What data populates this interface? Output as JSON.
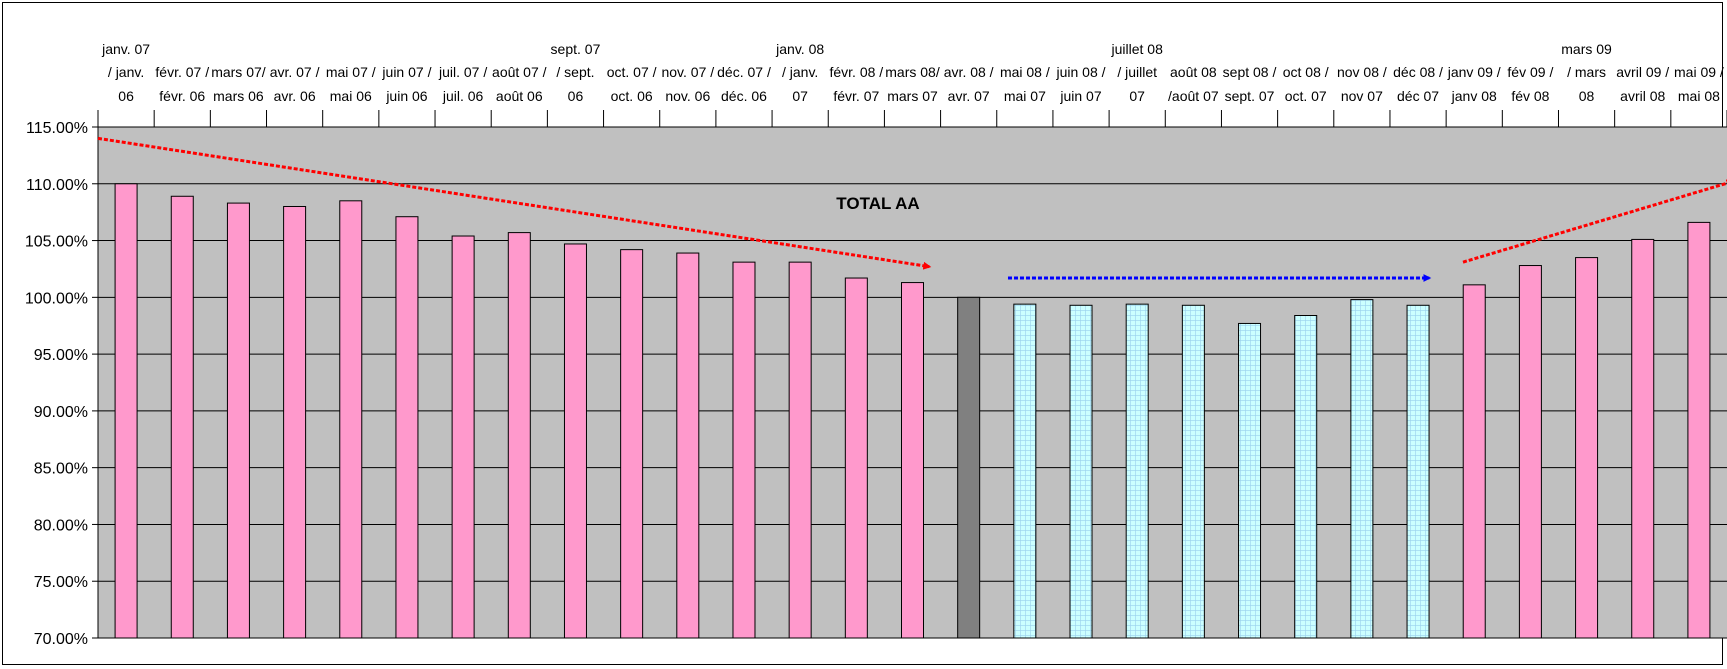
{
  "chart_data": {
    "type": "bar",
    "title": "TOTAL AA",
    "xlabel": "",
    "ylabel": "",
    "ylim": [
      70,
      115
    ],
    "y_tick_labels": [
      "115.00%",
      "110.00%",
      "105.00%",
      "100.00%",
      "95.00%",
      "90.00%",
      "85.00%",
      "80.00%",
      "75.00%",
      "70.00%"
    ],
    "grid": true,
    "legend": "none",
    "categories": [
      [
        "janv. 07",
        "/ janv.",
        "06"
      ],
      [
        "",
        "févr. 07 /",
        "févr. 06"
      ],
      [
        "",
        "mars 07/",
        "mars 06"
      ],
      [
        "",
        "avr. 07 /",
        "avr. 06"
      ],
      [
        "",
        "mai 07 /",
        "mai 06"
      ],
      [
        "",
        "juin 07 /",
        "juin 06"
      ],
      [
        "",
        "juil. 07 /",
        "juil. 06"
      ],
      [
        "",
        "août 07 /",
        "août 06"
      ],
      [
        "sept. 07",
        "/ sept.",
        "06"
      ],
      [
        "",
        "oct. 07 /",
        "oct. 06"
      ],
      [
        "",
        "nov. 07 /",
        "nov. 06"
      ],
      [
        "",
        "déc. 07 /",
        "déc. 06"
      ],
      [
        "janv. 08",
        "/ janv.",
        "07"
      ],
      [
        "",
        "févr. 08 /",
        "févr. 07"
      ],
      [
        "",
        "mars 08/",
        "mars 07"
      ],
      [
        "",
        "avr. 08 /",
        "avr. 07"
      ],
      [
        "",
        "mai 08 /",
        "mai 07"
      ],
      [
        "",
        "juin 08 /",
        "juin 07"
      ],
      [
        "juillet 08",
        "/ juillet",
        "07"
      ],
      [
        "",
        "août 08",
        "/août 07"
      ],
      [
        "",
        "sept 08 /",
        "sept. 07"
      ],
      [
        "",
        "oct 08 /",
        "oct. 07"
      ],
      [
        "",
        "nov 08 /",
        "nov 07"
      ],
      [
        "",
        "déc 08 /",
        "déc 07"
      ],
      [
        "",
        "janv 09 /",
        "janv 08"
      ],
      [
        "",
        "fév 09 /",
        "fév 08"
      ],
      [
        "mars 09",
        "/ mars",
        "08"
      ],
      [
        "",
        "avril 09 /",
        "avril 08"
      ],
      [
        "",
        "mai 09 /",
        "mai 08"
      ]
    ],
    "values": [
      110.0,
      108.9,
      108.3,
      108.0,
      108.5,
      107.1,
      105.4,
      105.7,
      104.7,
      104.2,
      103.9,
      103.1,
      103.1,
      101.7,
      101.3,
      100.0,
      99.4,
      99.3,
      99.4,
      99.3,
      97.7,
      98.4,
      99.8,
      99.3,
      101.1,
      102.8,
      103.5,
      105.1,
      106.6
    ],
    "bar_styles": [
      "pink",
      "pink",
      "pink",
      "pink",
      "pink",
      "pink",
      "pink",
      "pink",
      "pink",
      "pink",
      "pink",
      "pink",
      "pink",
      "pink",
      "pink",
      "gray",
      "checked",
      "checked",
      "checked",
      "checked",
      "checked",
      "checked",
      "checked",
      "checked",
      "pink",
      "pink",
      "pink",
      "pink",
      "pink"
    ],
    "trend_arrows": [
      {
        "color": "#ff0000",
        "from": [
          0,
          114
        ],
        "to": [
          14.8,
          102.7
        ]
      },
      {
        "color": "#0000ff",
        "from": [
          16.2,
          101.7
        ],
        "to": [
          23.7,
          101.7
        ]
      },
      {
        "color": "#ff0000",
        "from": [
          24.3,
          103.1
        ],
        "to": [
          29.1,
          110.2
        ]
      }
    ],
    "colors": {
      "plot_background": "#c0c0c0",
      "pink": "#ff99cc",
      "gray": "#808080",
      "checked": "#ccffff",
      "check_lines": "#9ad0ee",
      "bar_outline": "#000000"
    }
  }
}
